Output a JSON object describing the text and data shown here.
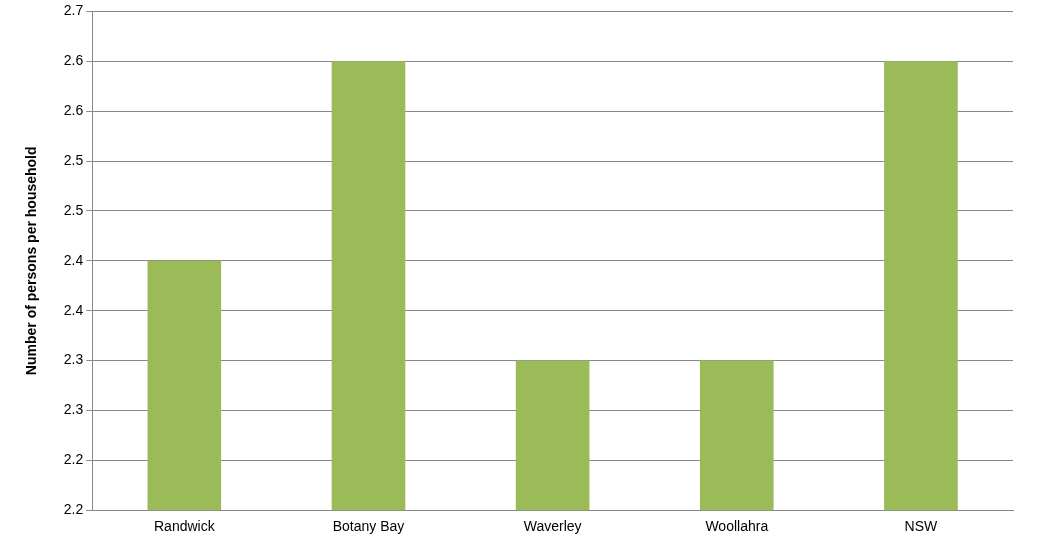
{
  "chart_data": {
    "type": "bar",
    "ylabel": "Number of persons per household",
    "categories": [
      "Randwick",
      "Botany Bay",
      "Waverley",
      "Woollahra",
      "NSW"
    ],
    "values": [
      2.4,
      2.6,
      2.3,
      2.3,
      2.6
    ],
    "color": "#9bbb59",
    "ylim": [
      2.15,
      2.65
    ],
    "yticks": [
      {
        "value": 2.15,
        "label": "2.2"
      },
      {
        "value": 2.2,
        "label": "2.2"
      },
      {
        "value": 2.25,
        "label": "2.3"
      },
      {
        "value": 2.3,
        "label": "2.3"
      },
      {
        "value": 2.35,
        "label": "2.4"
      },
      {
        "value": 2.4,
        "label": "2.4"
      },
      {
        "value": 2.45,
        "label": "2.5"
      },
      {
        "value": 2.5,
        "label": "2.5"
      },
      {
        "value": 2.55,
        "label": "2.6"
      },
      {
        "value": 2.6,
        "label": "2.6"
      },
      {
        "value": 2.65,
        "label": "2.7"
      }
    ],
    "grid": "y",
    "legend": false
  }
}
